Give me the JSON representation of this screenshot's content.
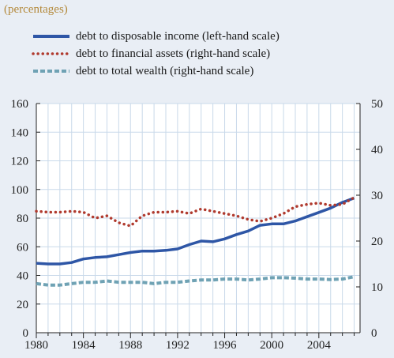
{
  "chart_data": {
    "type": "line",
    "subtitle": "(percentages)",
    "x": [
      1980,
      1981,
      1982,
      1983,
      1984,
      1985,
      1986,
      1987,
      1988,
      1989,
      1990,
      1991,
      1992,
      1993,
      1994,
      1995,
      1996,
      1997,
      1998,
      1999,
      2000,
      2001,
      2002,
      2003,
      2004,
      2005,
      2006,
      2007
    ],
    "xticks": [
      "1980",
      "1984",
      "1988",
      "1992",
      "1996",
      "2000",
      "2004"
    ],
    "xlim": [
      1980,
      2007.5
    ],
    "left_axis": {
      "ylim": [
        0,
        160
      ],
      "ticks": [
        "0",
        "20",
        "40",
        "60",
        "80",
        "100",
        "120",
        "140",
        "160"
      ]
    },
    "right_axis": {
      "ylim": [
        0,
        50
      ],
      "ticks": [
        "0",
        "10",
        "20",
        "30",
        "40",
        "50"
      ]
    },
    "grid": true,
    "legend_position": "top-left",
    "series": [
      {
        "name": "debt to disposable income (left-hand scale)",
        "axis": "left",
        "style": "solid",
        "color": "#2e56a6",
        "values": [
          48.5,
          48,
          48,
          49,
          51.5,
          52.5,
          53,
          54.5,
          56,
          57,
          57,
          57.5,
          58.5,
          61.5,
          64,
          63.5,
          65.5,
          68.5,
          71,
          75,
          76,
          76,
          78,
          81,
          84,
          87,
          91,
          94
        ]
      },
      {
        "name": "debt to financial assets (right-hand scale)",
        "axis": "right",
        "style": "dotted",
        "color": "#b03a2e",
        "values": [
          26.5,
          26.3,
          26.3,
          26.5,
          26.3,
          25,
          25.5,
          24,
          23.3,
          25.5,
          26.3,
          26.3,
          26.5,
          26,
          27,
          26.5,
          26,
          25.5,
          24.7,
          24.3,
          25,
          26,
          27.5,
          28,
          28.3,
          27.8,
          28,
          29.5
        ]
      },
      {
        "name": "debt to total wealth (right-hand scale)",
        "axis": "right",
        "style": "dashed",
        "color": "#6fa2b4",
        "values": [
          10.7,
          10.4,
          10.4,
          10.7,
          11,
          11,
          11.3,
          11,
          11,
          11,
          10.7,
          11,
          11,
          11.3,
          11.5,
          11.5,
          11.7,
          11.7,
          11.5,
          11.7,
          12,
          12,
          11.9,
          11.7,
          11.7,
          11.6,
          11.7,
          12.2
        ]
      }
    ]
  }
}
